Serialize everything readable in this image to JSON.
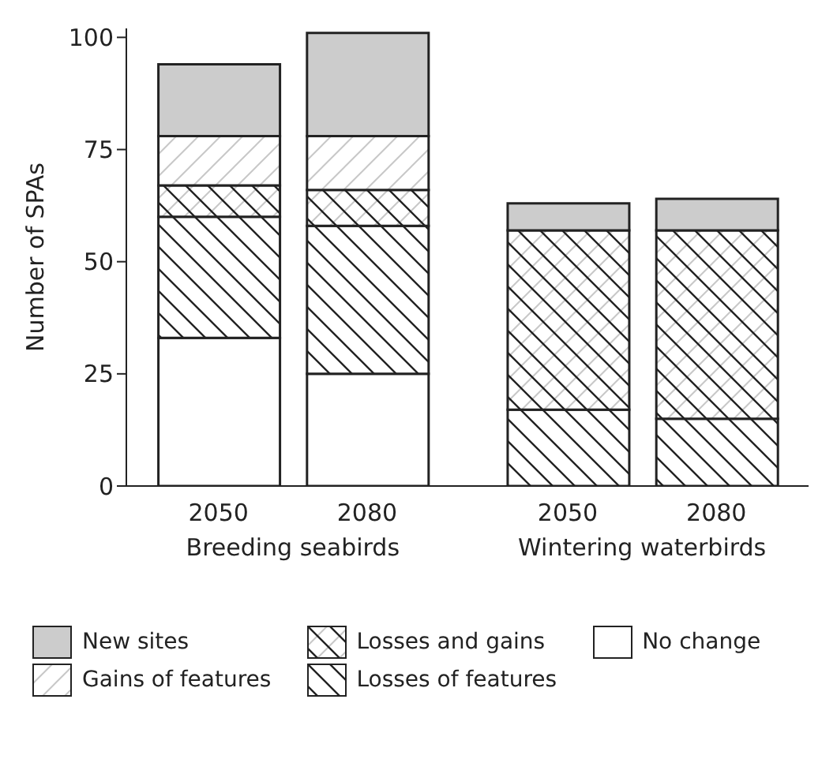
{
  "chart_data": {
    "type": "bar",
    "stacked": true,
    "ylabel": "Number of SPAs",
    "categories": [
      "2050",
      "2080",
      "2050",
      "2080"
    ],
    "annotations": [
      "Breeding seabirds",
      "Wintering waterbirds"
    ],
    "series": [
      {
        "name": "No change",
        "color": "#ffffff",
        "values": [
          33,
          25,
          0,
          0
        ]
      },
      {
        "name": "Losses of features",
        "color": "#222222",
        "values": [
          27,
          33,
          17,
          15
        ]
      },
      {
        "name": "Losses and gains",
        "color": "#222222",
        "values": [
          7,
          8,
          40,
          42
        ]
      },
      {
        "name": "Gains of features",
        "color": "#222222",
        "values": [
          11,
          12,
          0,
          0
        ]
      },
      {
        "name": "New sites",
        "color": "#cccccc",
        "values": [
          16,
          23,
          6,
          7
        ]
      }
    ],
    "ylim": [
      0,
      102
    ],
    "yticks": [
      0,
      25,
      50,
      75,
      100
    ],
    "grid": false,
    "legend": "bottom"
  }
}
